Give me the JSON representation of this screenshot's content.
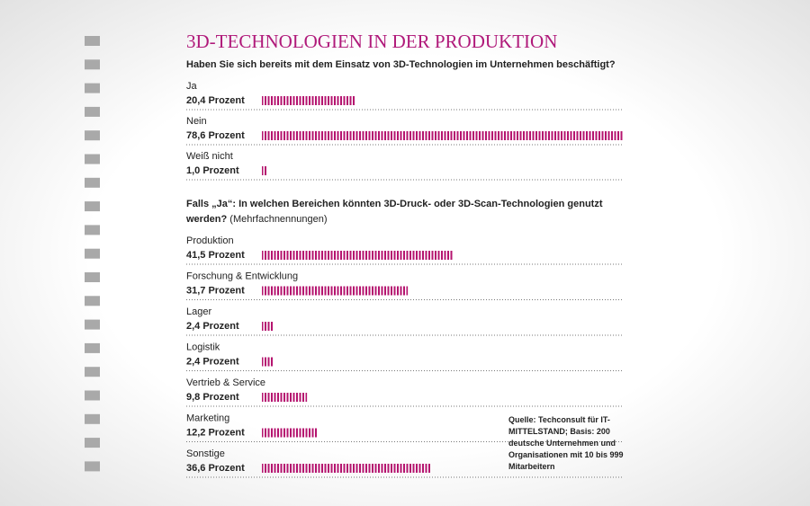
{
  "title": "3D-TECHNOLOGIEN IN DER PRODUKTION",
  "source": "Quelle: Techconsult für IT-MITTELSTAND; Basis: 200 deutsche Unternehmen und Organisationen mit 10 bis 999 Mitarbeitern",
  "chart_data": [
    {
      "type": "bar",
      "orientation": "horizontal",
      "color": "#b5146f",
      "title": "Haben Sie sich bereits mit dem Einsatz von 3D-Technologien im Unternehmen beschäftigt?",
      "categories": [
        "Ja",
        "Nein",
        "Weiß nicht"
      ],
      "values": [
        20.4,
        78.6,
        1.0
      ],
      "value_labels": [
        "20,4 Prozent",
        "78,6 Prozent",
        "1,0 Prozent"
      ]
    },
    {
      "type": "bar",
      "orientation": "horizontal",
      "color": "#b5146f",
      "title": "Falls „Ja“: In welchen Bereichen könnten 3D-Druck- oder 3D-Scan-Technologien genutzt werden?",
      "subtitle": "(Mehrfachnennungen)",
      "categories": [
        "Produktion",
        "Forschung & Entwicklung",
        "Lager",
        "Logistik",
        "Vertrieb & Service",
        "Marketing",
        "Sonstige"
      ],
      "values": [
        41.5,
        31.7,
        2.4,
        2.4,
        9.8,
        12.2,
        36.6
      ],
      "value_labels": [
        "41,5 Prozent",
        "31,7 Prozent",
        "2,4 Prozent",
        "2,4 Prozent",
        "9,8 Prozent",
        "12,2 Prozent",
        "36,6 Prozent"
      ]
    }
  ]
}
